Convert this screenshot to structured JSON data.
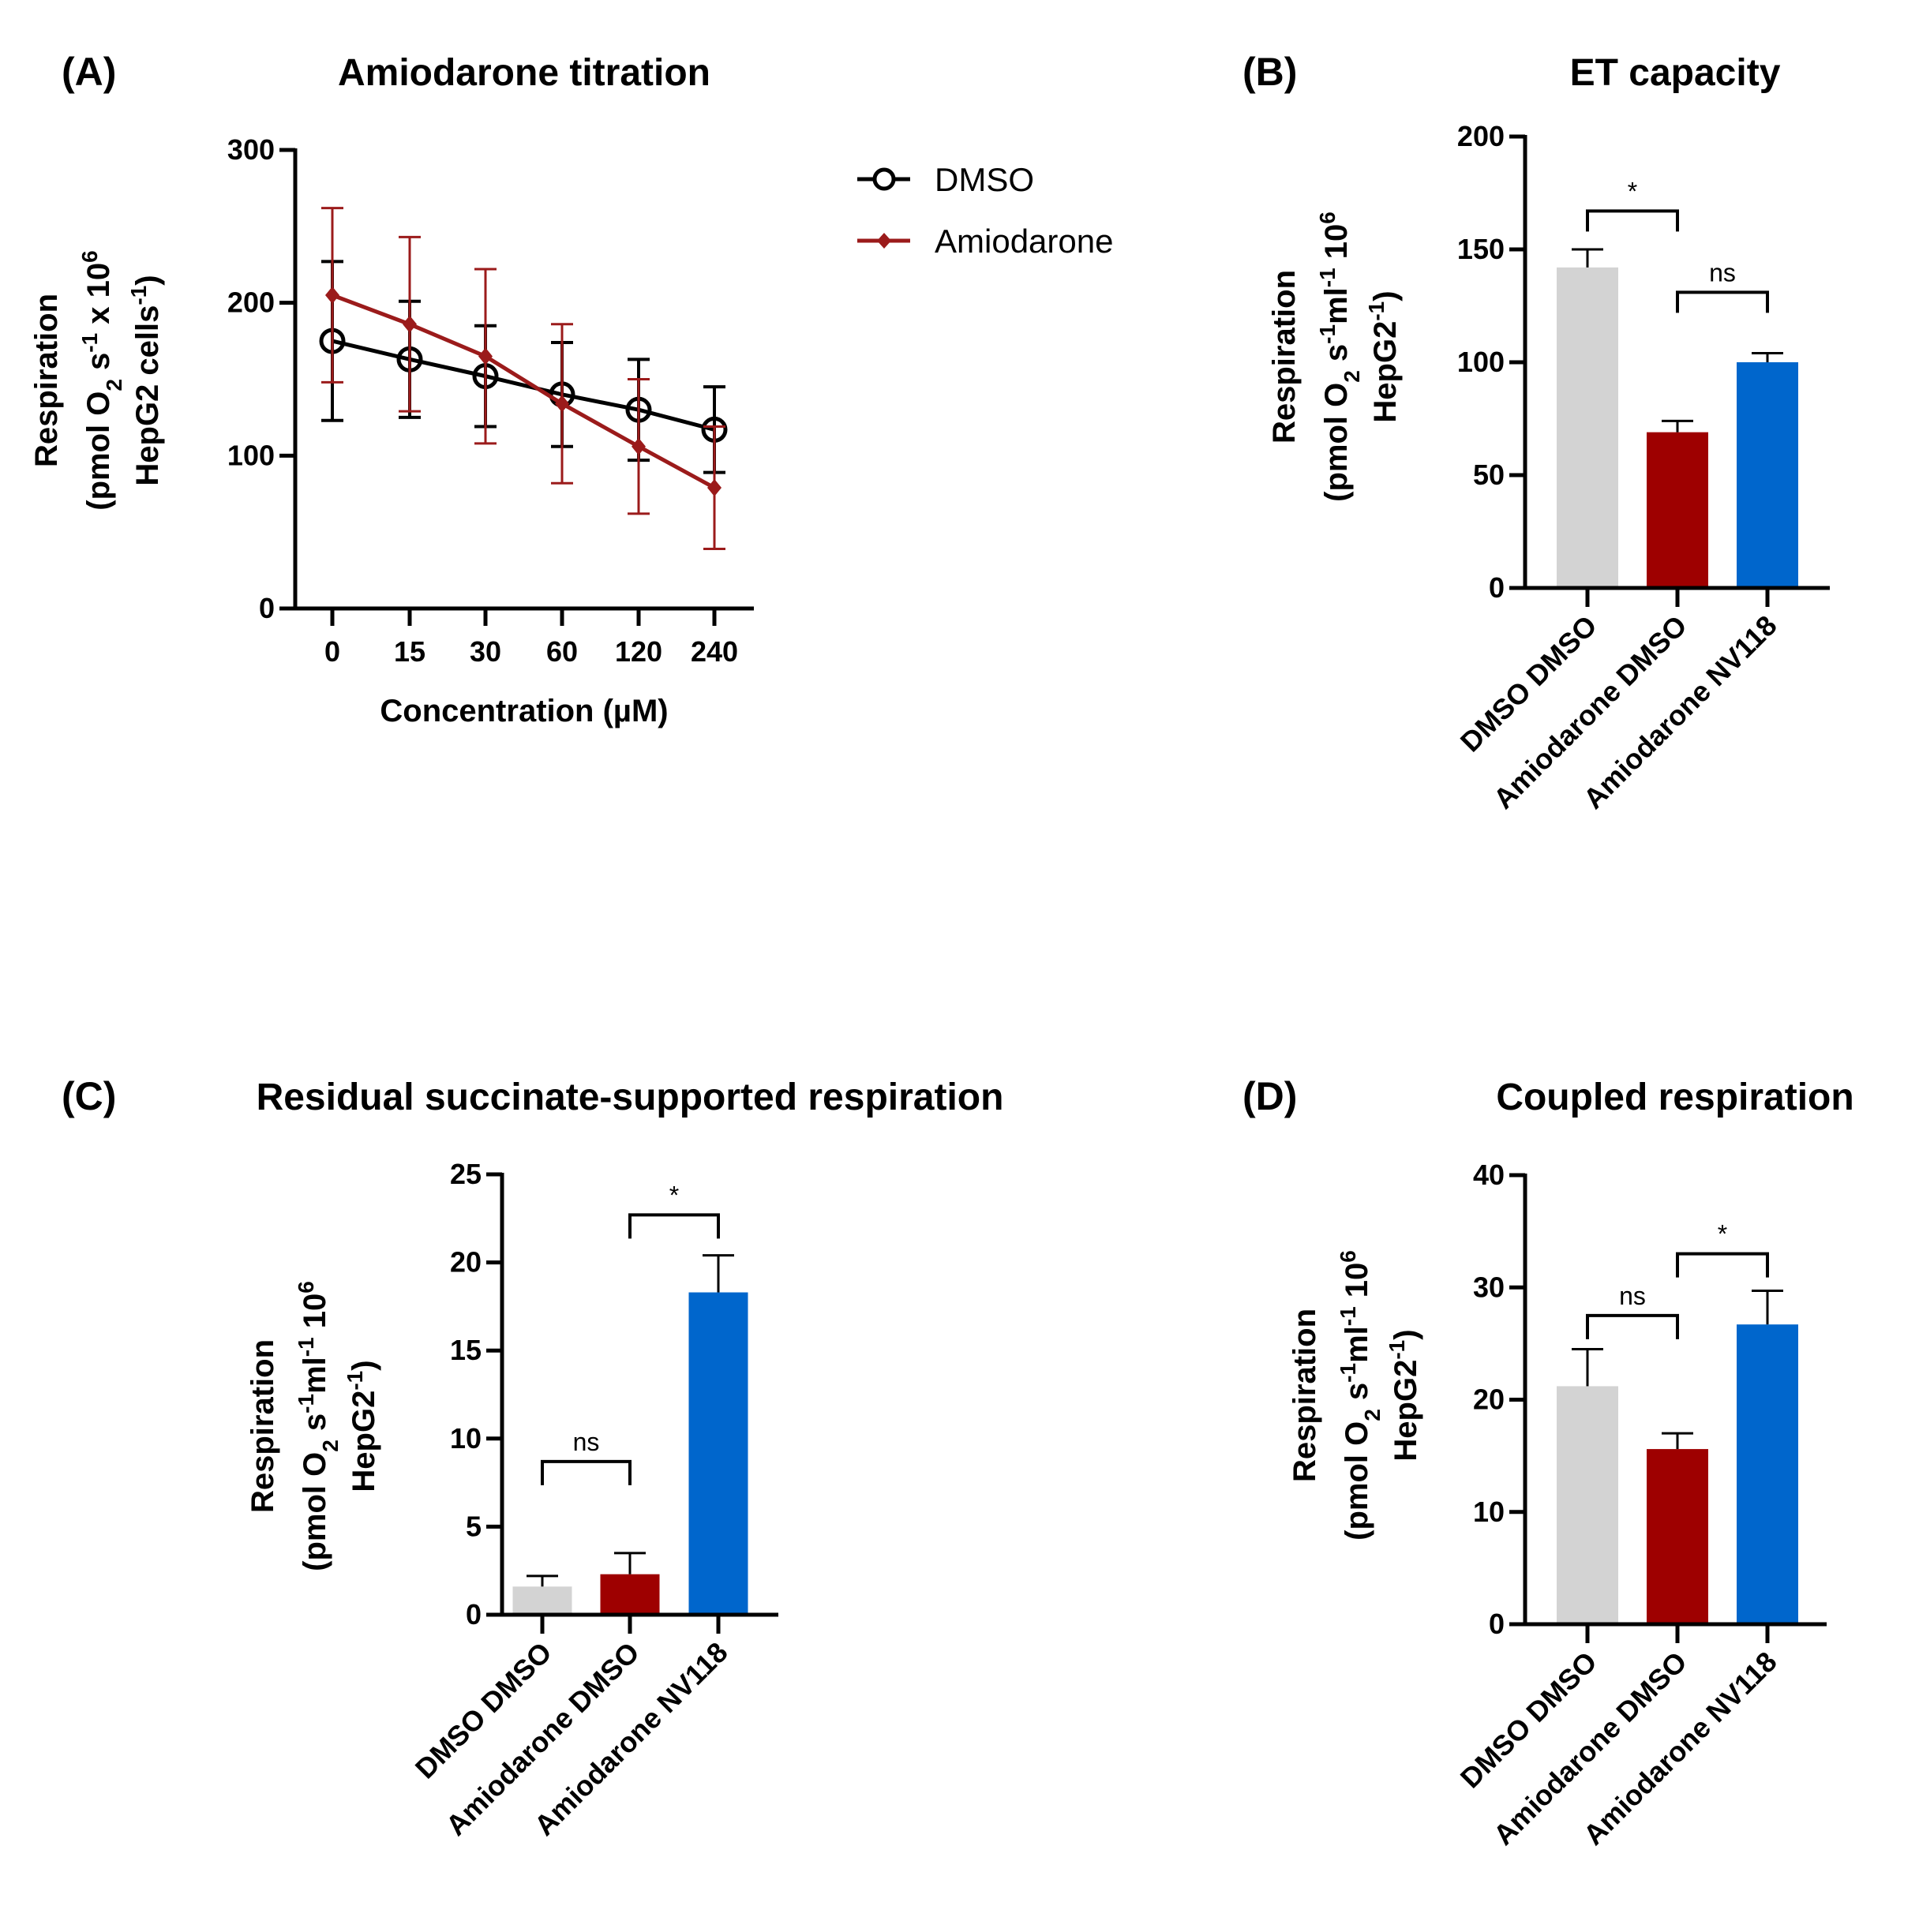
{
  "chart_data": [
    {
      "panel": "(A)",
      "type": "line",
      "title": "Amiodarone titration",
      "xlabel": "Concentration (µM)",
      "ylabel": [
        [
          [
            "Respiration",
            ""
          ]
        ],
        [
          [
            "(pmol O",
            ""
          ],
          [
            "2",
            "sub"
          ],
          [
            " s",
            ""
          ],
          [
            "-1",
            "sup"
          ],
          [
            " x 10",
            ""
          ],
          [
            "6",
            "sup"
          ]
        ],
        [
          [
            "HepG2 cells",
            ""
          ],
          [
            "-1",
            "sup"
          ],
          [
            ")",
            ""
          ]
        ]
      ],
      "categories": [
        "0",
        "15",
        "30",
        "60",
        "120",
        "240"
      ],
      "ylim": [
        0,
        300
      ],
      "yticks": [
        "0",
        "100",
        "200",
        "300"
      ],
      "legend_position": "top-right",
      "series": [
        {
          "name": "DMSO",
          "marker": "open-circle",
          "color": "#000000",
          "values": [
            175,
            163,
            152,
            140,
            130,
            117
          ],
          "errors": [
            52,
            38,
            33,
            34,
            33,
            28
          ]
        },
        {
          "name": "Amiodarone",
          "marker": "diamond",
          "color": "#9b1b1b",
          "values": [
            205,
            186,
            165,
            134,
            106,
            79
          ],
          "errors": [
            57,
            57,
            57,
            52,
            44,
            40
          ]
        }
      ]
    },
    {
      "panel": "(B)",
      "type": "bar",
      "title": "ET capacity",
      "ylabel": [
        [
          [
            "Respiration",
            ""
          ]
        ],
        [
          [
            "(pmol O",
            ""
          ],
          [
            "2",
            "sub"
          ],
          [
            " s",
            ""
          ],
          [
            "-1",
            "sup"
          ],
          [
            "ml",
            ""
          ],
          [
            "-1",
            "sup"
          ],
          [
            " 10",
            ""
          ],
          [
            "6",
            "sup"
          ]
        ],
        [
          [
            "HepG2",
            ""
          ],
          [
            "-1",
            "sup"
          ],
          [
            ")",
            ""
          ]
        ]
      ],
      "categories": [
        "DMSO DMSO",
        "Amiodarone  DMSO",
        "Amiodarone NV118"
      ],
      "values": [
        142,
        69,
        100
      ],
      "errors": [
        8,
        5,
        4
      ],
      "colors": [
        "#d3d3d3",
        "#9e0000",
        "#0066cc"
      ],
      "ylim": [
        0,
        200
      ],
      "yticks": [
        "0",
        "50",
        "100",
        "150",
        "200"
      ],
      "significance": [
        {
          "from": 0,
          "to": 1,
          "label": "*",
          "level": 167
        },
        {
          "from": 1,
          "to": 2,
          "label": "ns",
          "level": 131
        }
      ]
    },
    {
      "panel": "(C)",
      "type": "bar",
      "title": "Residual succinate-supported respiration",
      "ylabel": [
        [
          [
            "Respiration",
            ""
          ]
        ],
        [
          [
            "(pmol O",
            ""
          ],
          [
            "2",
            "sub"
          ],
          [
            " s",
            ""
          ],
          [
            "-1",
            "sup"
          ],
          [
            "ml",
            ""
          ],
          [
            "-1",
            "sup"
          ],
          [
            " 10",
            ""
          ],
          [
            "6",
            "sup"
          ]
        ],
        [
          [
            "HepG2",
            ""
          ],
          [
            "-1",
            "sup"
          ],
          [
            ")",
            ""
          ]
        ]
      ],
      "categories": [
        "DMSO DMSO",
        "Amiodarone  DMSO",
        "Amiodarone NV118"
      ],
      "values": [
        1.6,
        2.3,
        18.3
      ],
      "errors": [
        0.6,
        1.2,
        2.1
      ],
      "colors": [
        "#d3d3d3",
        "#9e0000",
        "#0066cc"
      ],
      "ylim": [
        0,
        25
      ],
      "yticks": [
        "0",
        "5",
        "10",
        "15",
        "20",
        "25"
      ],
      "significance": [
        {
          "from": 0,
          "to": 1,
          "label": "ns",
          "level": 8.7
        },
        {
          "from": 1,
          "to": 2,
          "label": "*",
          "level": 22.7
        }
      ]
    },
    {
      "panel": "(D)",
      "type": "bar",
      "title": "Coupled respiration",
      "ylabel": [
        [
          [
            "Respiration",
            ""
          ]
        ],
        [
          [
            "(pmol O",
            ""
          ],
          [
            "2",
            "sub"
          ],
          [
            " s",
            ""
          ],
          [
            "-1",
            "sup"
          ],
          [
            "ml",
            ""
          ],
          [
            "-1",
            "sup"
          ],
          [
            " 10",
            ""
          ],
          [
            "6",
            "sup"
          ]
        ],
        [
          [
            "HepG2",
            ""
          ],
          [
            "-1",
            "sup"
          ],
          [
            ")",
            ""
          ]
        ]
      ],
      "categories": [
        "DMSO DMSO",
        "Amiodarone  DMSO",
        "Amiodarone NV118"
      ],
      "values": [
        21.2,
        15.6,
        26.7
      ],
      "errors": [
        3.3,
        1.4,
        3.0
      ],
      "colors": [
        "#d3d3d3",
        "#9e0000",
        "#0066cc"
      ],
      "ylim": [
        0,
        40
      ],
      "yticks": [
        "0",
        "10",
        "20",
        "30",
        "40"
      ],
      "significance": [
        {
          "from": 0,
          "to": 1,
          "label": "ns",
          "level": 27.5
        },
        {
          "from": 1,
          "to": 2,
          "label": "*",
          "level": 33
        }
      ]
    }
  ]
}
